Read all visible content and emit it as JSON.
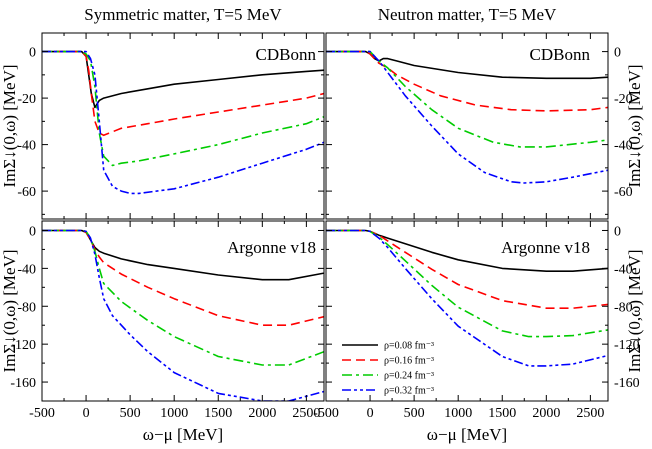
{
  "column_titles": [
    "Symmetric matter, T=5 MeV",
    "Neutron matter, T=5 MeV"
  ],
  "xlabel": "ω−μ [MeV]",
  "legend": [
    "ρ=0.08 fm⁻³",
    "ρ=0.16 fm⁻³",
    "ρ=0.24 fm⁻³",
    "ρ=0.32 fm⁻³"
  ],
  "series_colors": [
    "#000000",
    "#ff0000",
    "#00cc00",
    "#0000ff"
  ],
  "chart_data": [
    {
      "type": "line",
      "title": "CDBonn",
      "column_title": "Symmetric matter, T=5 MeV",
      "ylabel": "ImΣ↓(0,ω) [MeV]",
      "xlim": [
        -500,
        2700
      ],
      "ylim": [
        -72,
        8
      ],
      "xticks": [
        -500,
        0,
        500,
        1000,
        1500,
        2000,
        2500
      ],
      "yticks": [
        0,
        -20,
        -40,
        -60
      ],
      "grid": false,
      "series": [
        {
          "name": "ρ=0.08 fm⁻³",
          "x": [
            -500,
            -50,
            0,
            30,
            60,
            100,
            150,
            200,
            400,
            700,
            1000,
            1500,
            2000,
            2500,
            2700
          ],
          "y": [
            0,
            0,
            -2,
            -10,
            -18,
            -24,
            -21,
            -20,
            -18,
            -16,
            -14,
            -12,
            -10,
            -8.5,
            -8
          ]
        },
        {
          "name": "ρ=0.16 fm⁻³",
          "x": [
            -500,
            -50,
            0,
            30,
            60,
            100,
            150,
            200,
            400,
            700,
            1000,
            1500,
            2000,
            2500,
            2700
          ],
          "y": [
            0,
            0,
            -2,
            -8,
            -18,
            -30,
            -35,
            -36,
            -33,
            -31,
            -29,
            -26,
            -23,
            -20,
            -18
          ]
        },
        {
          "name": "ρ=0.24 fm⁻³",
          "x": [
            -500,
            -50,
            0,
            50,
            100,
            150,
            200,
            300,
            400,
            600,
            1000,
            1500,
            2000,
            2500,
            2700
          ],
          "y": [
            0,
            0,
            -1,
            -4,
            -15,
            -35,
            -45,
            -49,
            -48,
            -47,
            -44,
            -40,
            -35,
            -31,
            -28
          ]
        },
        {
          "name": "ρ=0.32 fm⁻³",
          "x": [
            -500,
            -50,
            0,
            50,
            100,
            150,
            200,
            300,
            400,
            500,
            600,
            1000,
            1500,
            2000,
            2500,
            2700
          ],
          "y": [
            0,
            0,
            0,
            -3,
            -10,
            -30,
            -51,
            -58,
            -60,
            -61,
            -61,
            -59,
            -54,
            -48,
            -42,
            -39
          ]
        }
      ]
    },
    {
      "type": "line",
      "title": "CDBonn",
      "column_title": "Neutron matter, T=5 MeV",
      "ylabel": "ImΣ↓(0,ω) [MeV]",
      "xlim": [
        -500,
        2700
      ],
      "ylim": [
        -72,
        8
      ],
      "xticks": [
        -500,
        0,
        500,
        1000,
        1500,
        2000,
        2500
      ],
      "yticks": [
        0,
        -20,
        -40,
        -60
      ],
      "grid": false,
      "series": [
        {
          "name": "ρ=0.08 fm⁻³",
          "x": [
            -500,
            -50,
            0,
            50,
            100,
            150,
            200,
            300,
            500,
            1000,
            1500,
            2000,
            2500,
            2700
          ],
          "y": [
            0,
            0,
            -1,
            -3,
            -4,
            -3,
            -3,
            -4,
            -6,
            -9,
            -11,
            -11.5,
            -11.5,
            -11
          ]
        },
        {
          "name": "ρ=0.16 fm⁻³",
          "x": [
            -500,
            -50,
            0,
            50,
            100,
            200,
            300,
            500,
            800,
            1200,
            1600,
            2000,
            2500,
            2700
          ],
          "y": [
            0,
            0,
            -1,
            -3,
            -5,
            -7,
            -10,
            -14,
            -19,
            -23,
            -25,
            -25.5,
            -25,
            -24
          ]
        },
        {
          "name": "ρ=0.24 fm⁻³",
          "x": [
            -500,
            -50,
            0,
            50,
            100,
            200,
            400,
            700,
            1000,
            1400,
            1700,
            2000,
            2500,
            2700
          ],
          "y": [
            0,
            0,
            0,
            -2,
            -4,
            -7,
            -15,
            -25,
            -33,
            -39,
            -41,
            -41,
            -39,
            -38
          ]
        },
        {
          "name": "ρ=0.32 fm⁻³",
          "x": [
            -500,
            -50,
            0,
            50,
            100,
            200,
            400,
            700,
            1000,
            1300,
            1600,
            1750,
            2000,
            2300,
            2700
          ],
          "y": [
            0,
            0,
            0,
            -2,
            -4,
            -9,
            -19,
            -32,
            -44,
            -52,
            -56,
            -56.5,
            -56,
            -54,
            -51
          ]
        }
      ]
    },
    {
      "type": "line",
      "title": "Argonne v18",
      "column_title": "Symmetric matter, T=5 MeV",
      "ylabel": "ImΣ↓(0,ω) [MeV]",
      "xlim": [
        -500,
        2700
      ],
      "ylim": [
        -180,
        10
      ],
      "xticks": [
        -500,
        0,
        500,
        1000,
        1500,
        2000,
        2500
      ],
      "yticks": [
        0,
        -40,
        -80,
        -120,
        -160
      ],
      "grid": false,
      "series": [
        {
          "name": "ρ=0.08 fm⁻³",
          "x": [
            -500,
            -50,
            0,
            50,
            100,
            150,
            200,
            400,
            700,
            1000,
            1500,
            2000,
            2300,
            2700
          ],
          "y": [
            0,
            0,
            -2,
            -10,
            -18,
            -22,
            -24,
            -30,
            -36,
            -40,
            -47,
            -52,
            -52,
            -45
          ]
        },
        {
          "name": "ρ=0.16 fm⁻³",
          "x": [
            -500,
            -50,
            0,
            50,
            100,
            150,
            200,
            400,
            700,
            1000,
            1500,
            2000,
            2300,
            2700
          ],
          "y": [
            0,
            0,
            -2,
            -10,
            -20,
            -28,
            -34,
            -46,
            -60,
            -72,
            -90,
            -100,
            -100,
            -91
          ]
        },
        {
          "name": "ρ=0.24 fm⁻³",
          "x": [
            -500,
            -50,
            0,
            50,
            100,
            150,
            200,
            400,
            700,
            1000,
            1500,
            2000,
            2300,
            2700
          ],
          "y": [
            0,
            0,
            -1,
            -8,
            -22,
            -40,
            -56,
            -75,
            -95,
            -112,
            -133,
            -142,
            -142,
            -128
          ]
        },
        {
          "name": "ρ=0.32 fm⁻³",
          "x": [
            -500,
            -50,
            0,
            50,
            100,
            150,
            200,
            300,
            500,
            700,
            1000,
            1500,
            2000,
            2300,
            2700
          ],
          "y": [
            0,
            0,
            -1,
            -8,
            -25,
            -50,
            -72,
            -90,
            -110,
            -128,
            -150,
            -172,
            -180,
            -180,
            -170
          ]
        }
      ]
    },
    {
      "type": "line",
      "title": "Argonne v18",
      "column_title": "Neutron matter, T=5 MeV",
      "ylabel": "ImΣ↓(0,ω) [MeV]",
      "xlim": [
        -500,
        2700
      ],
      "ylim": [
        -180,
        10
      ],
      "xticks": [
        -500,
        0,
        500,
        1000,
        1500,
        2000,
        2500
      ],
      "yticks": [
        0,
        -40,
        -80,
        -120,
        -160
      ],
      "grid": false,
      "legend_position": "lower-left",
      "series": [
        {
          "name": "ρ=0.08 fm⁻³",
          "x": [
            -500,
            -50,
            0,
            100,
            200,
            400,
            700,
            1000,
            1500,
            2000,
            2300,
            2700
          ],
          "y": [
            0,
            0,
            -1,
            -5,
            -8,
            -14,
            -23,
            -31,
            -40,
            -43,
            -43,
            -40
          ]
        },
        {
          "name": "ρ=0.16 fm⁻³",
          "x": [
            -500,
            -50,
            0,
            100,
            200,
            400,
            700,
            1000,
            1500,
            2000,
            2300,
            2700
          ],
          "y": [
            0,
            0,
            -1,
            -5,
            -11,
            -23,
            -41,
            -57,
            -74,
            -82,
            -82,
            -78
          ]
        },
        {
          "name": "ρ=0.24 fm⁻³",
          "x": [
            -500,
            -50,
            0,
            100,
            200,
            400,
            700,
            1000,
            1500,
            1800,
            2000,
            2300,
            2700
          ],
          "y": [
            0,
            0,
            -1,
            -7,
            -15,
            -32,
            -58,
            -81,
            -106,
            -112,
            -112,
            -111,
            -105
          ]
        },
        {
          "name": "ρ=0.32 fm⁻³",
          "x": [
            -500,
            -50,
            0,
            100,
            200,
            400,
            700,
            1000,
            1500,
            1800,
            2000,
            2300,
            2700
          ],
          "y": [
            0,
            0,
            -1,
            -8,
            -18,
            -40,
            -72,
            -101,
            -133,
            -143,
            -143,
            -141,
            -132
          ]
        }
      ]
    }
  ]
}
